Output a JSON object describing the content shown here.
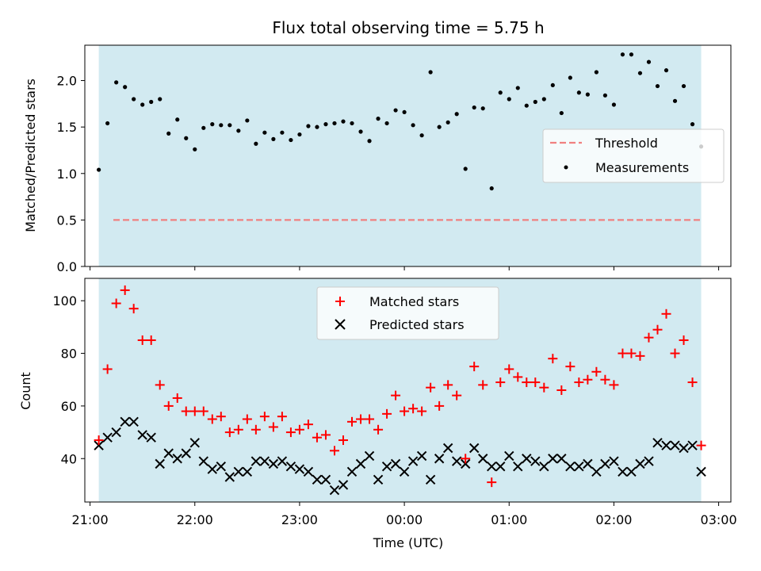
{
  "chart_data": {
    "type": "scatter",
    "title": "Flux total observing time = 5.75 h",
    "colors": {
      "shade": "#add8e6",
      "threshold": "#f08080",
      "matched": "#ff0000",
      "predicted": "#000000",
      "measurements": "#000000"
    },
    "xlabel": "Time (UTC)",
    "x_ticks": [
      "21:00",
      "22:00",
      "23:00",
      "00:00",
      "01:00",
      "02:00",
      "03:00"
    ],
    "x_range": [
      "20:57",
      "03:07"
    ],
    "shaded_interval": [
      "21:05",
      "02:50"
    ],
    "top": {
      "ylabel": "Matched/Predicted stars",
      "ylim": [
        0,
        2.38
      ],
      "y_ticks": [
        "0.0",
        "0.5",
        "1.0",
        "1.5",
        "2.0"
      ],
      "legend": {
        "position": "center-right",
        "entries": [
          "Threshold",
          "Measurements"
        ]
      },
      "threshold": {
        "name": "Threshold",
        "value": 0.5,
        "style": "dashed"
      },
      "measurements": {
        "name": "Measurements",
        "points": [
          [
            "21:05",
            1.04
          ],
          [
            "21:10",
            1.54
          ],
          [
            "21:15",
            1.98
          ],
          [
            "21:20",
            1.93
          ],
          [
            "21:25",
            1.8
          ],
          [
            "21:30",
            1.74
          ],
          [
            "21:35",
            1.77
          ],
          [
            "21:40",
            1.8
          ],
          [
            "21:45",
            1.43
          ],
          [
            "21:50",
            1.58
          ],
          [
            "21:55",
            1.38
          ],
          [
            "22:00",
            1.26
          ],
          [
            "22:05",
            1.49
          ],
          [
            "22:10",
            1.53
          ],
          [
            "22:15",
            1.52
          ],
          [
            "22:20",
            1.52
          ],
          [
            "22:25",
            1.46
          ],
          [
            "22:30",
            1.57
          ],
          [
            "22:35",
            1.32
          ],
          [
            "22:40",
            1.44
          ],
          [
            "22:45",
            1.37
          ],
          [
            "22:50",
            1.44
          ],
          [
            "22:55",
            1.36
          ],
          [
            "23:00",
            1.42
          ],
          [
            "23:05",
            1.51
          ],
          [
            "23:10",
            1.5
          ],
          [
            "23:15",
            1.53
          ],
          [
            "23:20",
            1.54
          ],
          [
            "23:25",
            1.56
          ],
          [
            "23:30",
            1.54
          ],
          [
            "23:35",
            1.45
          ],
          [
            "23:40",
            1.35
          ],
          [
            "23:45",
            1.59
          ],
          [
            "23:50",
            1.54
          ],
          [
            "23:55",
            1.68
          ],
          [
            "00:00",
            1.66
          ],
          [
            "00:05",
            1.52
          ],
          [
            "00:10",
            1.41
          ],
          [
            "00:15",
            2.09
          ],
          [
            "00:20",
            1.5
          ],
          [
            "00:25",
            1.55
          ],
          [
            "00:30",
            1.64
          ],
          [
            "00:35",
            1.05
          ],
          [
            "00:40",
            1.71
          ],
          [
            "00:45",
            1.7
          ],
          [
            "00:50",
            0.84
          ],
          [
            "00:55",
            1.87
          ],
          [
            "01:00",
            1.8
          ],
          [
            "01:05",
            1.92
          ],
          [
            "01:10",
            1.73
          ],
          [
            "01:15",
            1.77
          ],
          [
            "01:20",
            1.8
          ],
          [
            "01:25",
            1.95
          ],
          [
            "01:30",
            1.65
          ],
          [
            "01:35",
            2.03
          ],
          [
            "01:40",
            1.87
          ],
          [
            "01:45",
            1.85
          ],
          [
            "01:50",
            2.09
          ],
          [
            "01:55",
            1.84
          ],
          [
            "02:00",
            1.74
          ],
          [
            "02:05",
            2.28
          ],
          [
            "02:10",
            2.28
          ],
          [
            "02:15",
            2.08
          ],
          [
            "02:20",
            2.2
          ],
          [
            "02:25",
            1.94
          ],
          [
            "02:30",
            2.11
          ],
          [
            "02:35",
            1.78
          ],
          [
            "02:40",
            1.94
          ],
          [
            "02:45",
            1.53
          ],
          [
            "02:50",
            1.29
          ]
        ]
      }
    },
    "bottom": {
      "ylabel": "Count",
      "ylim": [
        23.5,
        108.5
      ],
      "y_ticks": [
        "40",
        "60",
        "80",
        "100"
      ],
      "legend": {
        "position": "top-center",
        "entries": [
          "Matched stars",
          "Predicted stars"
        ]
      },
      "matched": {
        "name": "Matched stars",
        "marker": "+",
        "points": [
          [
            "21:05",
            47
          ],
          [
            "21:10",
            74
          ],
          [
            "21:15",
            99
          ],
          [
            "21:20",
            104
          ],
          [
            "21:25",
            97
          ],
          [
            "21:30",
            85
          ],
          [
            "21:35",
            85
          ],
          [
            "21:40",
            68
          ],
          [
            "21:45",
            60
          ],
          [
            "21:50",
            63
          ],
          [
            "21:55",
            58
          ],
          [
            "22:00",
            58
          ],
          [
            "22:05",
            58
          ],
          [
            "22:10",
            55
          ],
          [
            "22:15",
            56
          ],
          [
            "22:20",
            50
          ],
          [
            "22:25",
            51
          ],
          [
            "22:30",
            55
          ],
          [
            "22:35",
            51
          ],
          [
            "22:40",
            56
          ],
          [
            "22:45",
            52
          ],
          [
            "22:50",
            56
          ],
          [
            "22:55",
            50
          ],
          [
            "23:00",
            51
          ],
          [
            "23:05",
            53
          ],
          [
            "23:10",
            48
          ],
          [
            "23:15",
            49
          ],
          [
            "23:20",
            43
          ],
          [
            "23:25",
            47
          ],
          [
            "23:30",
            54
          ],
          [
            "23:35",
            55
          ],
          [
            "23:40",
            55
          ],
          [
            "23:45",
            51
          ],
          [
            "23:50",
            57
          ],
          [
            "23:55",
            64
          ],
          [
            "00:00",
            58
          ],
          [
            "00:05",
            59
          ],
          [
            "00:10",
            58
          ],
          [
            "00:15",
            67
          ],
          [
            "00:20",
            60
          ],
          [
            "00:25",
            68
          ],
          [
            "00:30",
            64
          ],
          [
            "00:35",
            40
          ],
          [
            "00:40",
            75
          ],
          [
            "00:45",
            68
          ],
          [
            "00:50",
            31
          ],
          [
            "00:55",
            69
          ],
          [
            "01:00",
            74
          ],
          [
            "01:05",
            71
          ],
          [
            "01:10",
            69
          ],
          [
            "01:15",
            69
          ],
          [
            "01:20",
            67
          ],
          [
            "01:25",
            78
          ],
          [
            "01:30",
            66
          ],
          [
            "01:35",
            75
          ],
          [
            "01:40",
            69
          ],
          [
            "01:45",
            70
          ],
          [
            "01:50",
            73
          ],
          [
            "01:55",
            70
          ],
          [
            "02:00",
            68
          ],
          [
            "02:05",
            80
          ],
          [
            "02:10",
            80
          ],
          [
            "02:15",
            79
          ],
          [
            "02:20",
            86
          ],
          [
            "02:25",
            89
          ],
          [
            "02:30",
            95
          ],
          [
            "02:35",
            80
          ],
          [
            "02:40",
            85
          ],
          [
            "02:45",
            69
          ],
          [
            "02:50",
            45
          ]
        ]
      },
      "predicted": {
        "name": "Predicted stars",
        "marker": "x",
        "points": [
          [
            "21:05",
            45
          ],
          [
            "21:10",
            48
          ],
          [
            "21:15",
            50
          ],
          [
            "21:20",
            54
          ],
          [
            "21:25",
            54
          ],
          [
            "21:30",
            49
          ],
          [
            "21:35",
            48
          ],
          [
            "21:40",
            38
          ],
          [
            "21:45",
            42
          ],
          [
            "21:50",
            40
          ],
          [
            "21:55",
            42
          ],
          [
            "22:00",
            46
          ],
          [
            "22:05",
            39
          ],
          [
            "22:10",
            36
          ],
          [
            "22:15",
            37
          ],
          [
            "22:20",
            33
          ],
          [
            "22:25",
            35
          ],
          [
            "22:30",
            35
          ],
          [
            "22:35",
            39
          ],
          [
            "22:40",
            39
          ],
          [
            "22:45",
            38
          ],
          [
            "22:50",
            39
          ],
          [
            "22:55",
            37
          ],
          [
            "23:00",
            36
          ],
          [
            "23:05",
            35
          ],
          [
            "23:10",
            32
          ],
          [
            "23:15",
            32
          ],
          [
            "23:20",
            28
          ],
          [
            "23:25",
            30
          ],
          [
            "23:30",
            35
          ],
          [
            "23:35",
            38
          ],
          [
            "23:40",
            41
          ],
          [
            "23:45",
            32
          ],
          [
            "23:50",
            37
          ],
          [
            "23:55",
            38
          ],
          [
            "00:00",
            35
          ],
          [
            "00:05",
            39
          ],
          [
            "00:10",
            41
          ],
          [
            "00:15",
            32
          ],
          [
            "00:20",
            40
          ],
          [
            "00:25",
            44
          ],
          [
            "00:30",
            39
          ],
          [
            "00:35",
            38
          ],
          [
            "00:40",
            44
          ],
          [
            "00:45",
            40
          ],
          [
            "00:50",
            37
          ],
          [
            "00:55",
            37
          ],
          [
            "01:00",
            41
          ],
          [
            "01:05",
            37
          ],
          [
            "01:10",
            40
          ],
          [
            "01:15",
            39
          ],
          [
            "01:20",
            37
          ],
          [
            "01:25",
            40
          ],
          [
            "01:30",
            40
          ],
          [
            "01:35",
            37
          ],
          [
            "01:40",
            37
          ],
          [
            "01:45",
            38
          ],
          [
            "01:50",
            35
          ],
          [
            "01:55",
            38
          ],
          [
            "02:00",
            39
          ],
          [
            "02:05",
            35
          ],
          [
            "02:10",
            35
          ],
          [
            "02:15",
            38
          ],
          [
            "02:20",
            39
          ],
          [
            "02:25",
            46
          ],
          [
            "02:30",
            45
          ],
          [
            "02:35",
            45
          ],
          [
            "02:40",
            44
          ],
          [
            "02:45",
            45
          ],
          [
            "02:50",
            35
          ]
        ]
      }
    }
  }
}
